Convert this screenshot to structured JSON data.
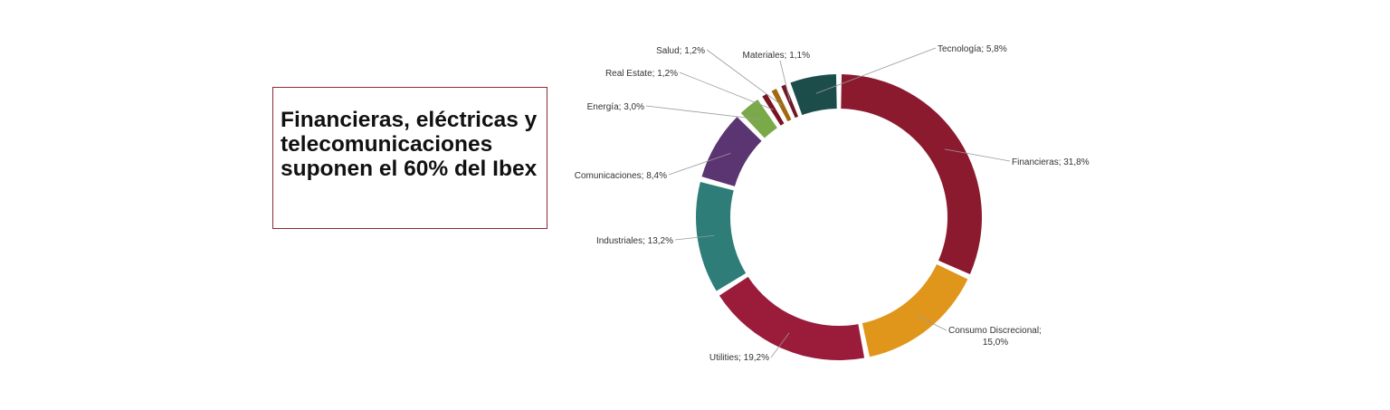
{
  "headline": "Financieras, eléctricas y telecomunicaciones suponen el 60% del Ibex",
  "chart_data": {
    "type": "pie",
    "variant": "donut",
    "title": "",
    "slices": [
      {
        "label": "Financieras; 31,8%",
        "category": "Financieras",
        "value": 31.8,
        "color": "#8b1a2e"
      },
      {
        "label_lines": [
          "Consumo Discrecional;",
          "15,0%"
        ],
        "category": "Consumo Discrecional",
        "value": 15.0,
        "color": "#e0961a"
      },
      {
        "label": "Utilities; 19,2%",
        "category": "Utilities",
        "value": 19.2,
        "color": "#9b1b3a"
      },
      {
        "label": "Industriales; 13,2%",
        "category": "Industriales",
        "value": 13.2,
        "color": "#2e7d78"
      },
      {
        "label": "Comunicaciones; 8,4%",
        "category": "Comunicaciones",
        "value": 8.4,
        "color": "#5b3472"
      },
      {
        "label": "Energía; 3,0%",
        "category": "Energía",
        "value": 3.0,
        "color": "#79a948"
      },
      {
        "label": "Real Estate; 1,2%",
        "category": "Real Estate",
        "value": 1.2,
        "color": "#7a1422"
      },
      {
        "label": "Salud; 1,2%",
        "category": "Salud",
        "value": 1.2,
        "color": "#a06a10"
      },
      {
        "label": "Materiales; 1,1%",
        "category": "Materiales",
        "value": 1.1,
        "color": "#6e1a28"
      },
      {
        "label": "Tecnología; 5,8%",
        "category": "Tecnología",
        "value": 5.8,
        "color": "#1d4d4b"
      }
    ],
    "legend": "none",
    "data_labels": "outside with leader lines"
  }
}
